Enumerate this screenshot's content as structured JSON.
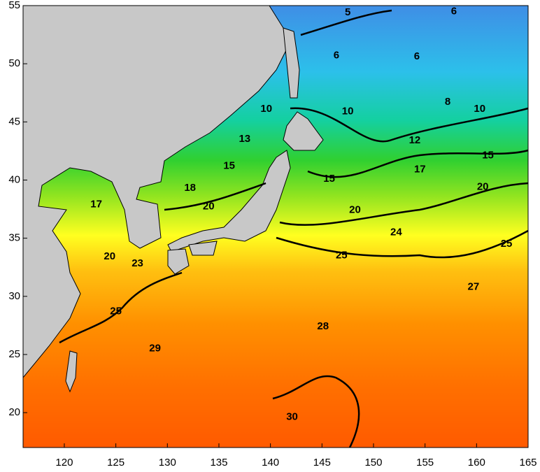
{
  "chart_data": {
    "type": "contour",
    "xlim": [
      116,
      165
    ],
    "ylim": [
      17,
      55
    ],
    "xticks": [
      120,
      125,
      130,
      135,
      140,
      145,
      150,
      155,
      160,
      165
    ],
    "yticks": [
      20,
      25,
      30,
      35,
      40,
      45,
      50,
      55
    ],
    "contour_labels": {
      "x": [
        147.5,
        157.8,
        146.4,
        154.2,
        157.2,
        139.6,
        147.5,
        160.3,
        154.0,
        137.5,
        136.0,
        145.7,
        161.1,
        123.1,
        154.5,
        132.2,
        134.0,
        124.4,
        148.2,
        160.6,
        127.1,
        152.2,
        125.0,
        146.9,
        162.9,
        159.7,
        145.1,
        128.8,
        142.1
      ],
      "y": [
        54.4,
        54.5,
        50.7,
        50.6,
        46.7,
        46.1,
        45.9,
        46.1,
        43.4,
        43.5,
        41.2,
        40.1,
        42.1,
        37.9,
        40.9,
        39.3,
        37.7,
        33.4,
        37.4,
        39.4,
        32.8,
        35.5,
        28.7,
        33.5,
        34.5,
        30.8,
        27.4,
        25.5,
        19.6
      ],
      "values": [
        5,
        6,
        6,
        6,
        8,
        10,
        10,
        10,
        12,
        13,
        15,
        15,
        15,
        17,
        17,
        18,
        20,
        20,
        20,
        20,
        23,
        24,
        25,
        25,
        25,
        27,
        28,
        29,
        30
      ]
    }
  }
}
